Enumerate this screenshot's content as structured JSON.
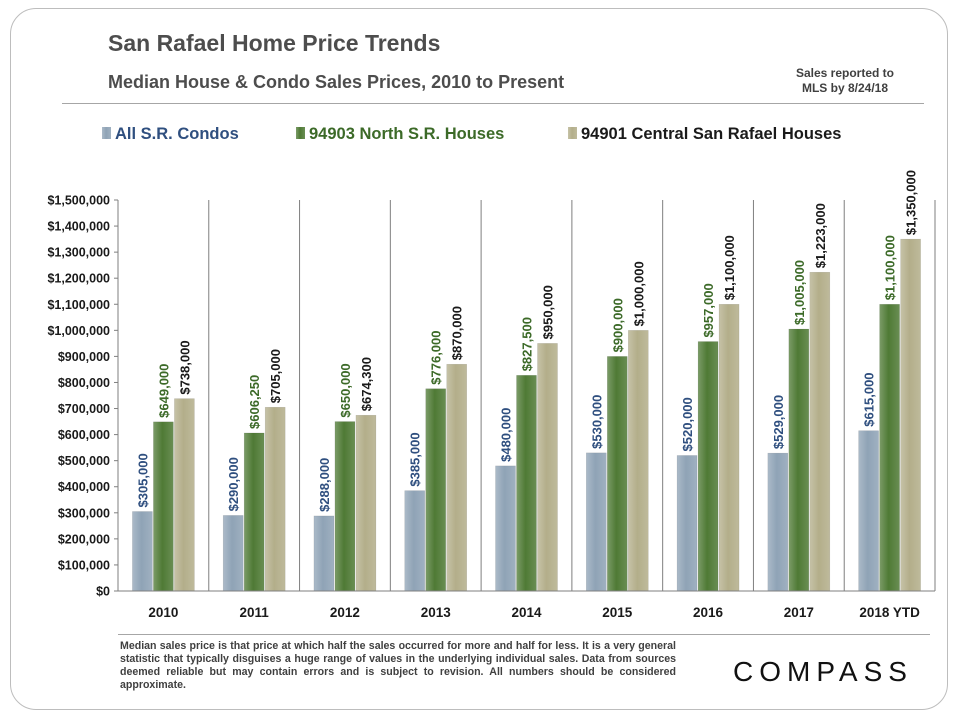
{
  "header": {
    "title": "San Rafael Home Price Trends",
    "subtitle": "Median House & Condo Sales Prices, 2010 to Present",
    "note": "Sales reported to\nMLS by 8/24/18"
  },
  "footer": {
    "note": "Median sales price is that price at which half the sales occurred for more and half for less. It is a very general statistic that typically disguises a huge range of values in the underlying individual sales. Data from sources deemed reliable but may contain errors and is subject to revision. All numbers should be considered approximate.",
    "logo": "COMPASS"
  },
  "chart_data": {
    "type": "bar",
    "title": "San Rafael Home Price Trends",
    "subtitle": "Median House & Condo Sales Prices, 2010 to Present",
    "categories": [
      "2010",
      "2011",
      "2012",
      "2013",
      "2014",
      "2015",
      "2016",
      "2017",
      "2018 YTD"
    ],
    "series": [
      {
        "name": "All S.R. Condos",
        "color": "#8fa3b6",
        "label_color": "#2f4f7f",
        "values": [
          305000,
          290000,
          288000,
          385000,
          480000,
          530000,
          520000,
          529000,
          615000
        ],
        "labels": [
          "$305,000",
          "$290,000",
          "$288,000",
          "$385,000",
          "$480,000",
          "$530,000",
          "$520,000",
          "$529,000",
          "$615,000"
        ]
      },
      {
        "name": "94903 North S.R. Houses",
        "color": "#4f7a35",
        "label_color": "#3c6a28",
        "values": [
          649000,
          606250,
          650000,
          776000,
          827500,
          900000,
          957000,
          1005000,
          1100000
        ],
        "labels": [
          "$649,000",
          "$606,250",
          "$650,000",
          "$776,000",
          "$827,500",
          "$900,000",
          "$957,000",
          "$1,005,000",
          "$1,100,000"
        ]
      },
      {
        "name": "94901 Central San Rafael Houses",
        "color": "#b3ae8a",
        "label_color": "#1a1a1a",
        "values": [
          738000,
          705000,
          674300,
          870000,
          950000,
          1000000,
          1100000,
          1223000,
          1350000
        ],
        "labels": [
          "$738,000",
          "$705,000",
          "$674,300",
          "$870,000",
          "$950,000",
          "$1,000,000",
          "$1,100,000",
          "$1,223,000",
          "$1,350,000"
        ]
      }
    ],
    "ylim": [
      0,
      1500000
    ],
    "y_ticks": [
      "$0",
      "$100,000",
      "$200,000",
      "$300,000",
      "$400,000",
      "$500,000",
      "$600,000",
      "$700,000",
      "$800,000",
      "$900,000",
      "$1,000,000",
      "$1,100,000",
      "$1,200,000",
      "$1,300,000",
      "$1,400,000",
      "$1,500,000"
    ],
    "y_tick_values": [
      0,
      100000,
      200000,
      300000,
      400000,
      500000,
      600000,
      700000,
      800000,
      900000,
      1000000,
      1100000,
      1200000,
      1300000,
      1400000,
      1500000
    ],
    "grid": "vertical separators between categories",
    "legend": "top",
    "xlabel": "",
    "ylabel": ""
  }
}
